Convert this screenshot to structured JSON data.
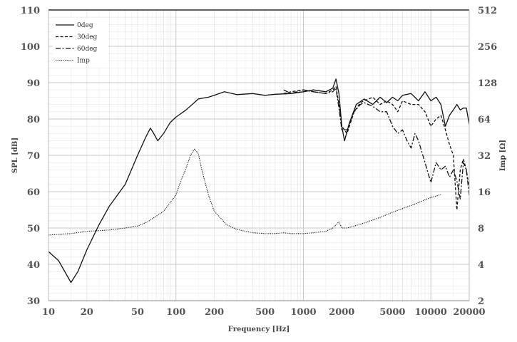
{
  "chart_data": {
    "type": "line",
    "title": "",
    "xlabel": "Frequency [Hz]",
    "ylabel": "SPL [dB]",
    "y2label": "Imp [Ω]",
    "x_scale": "log",
    "xlim": [
      10,
      20000
    ],
    "ylim": [
      30,
      110
    ],
    "y2lim": [
      2,
      512
    ],
    "y2_scale": "log2",
    "grid": true,
    "legend_position": "top-left",
    "x_ticks": [
      10,
      20,
      50,
      100,
      200,
      500,
      1000,
      2000,
      5000,
      10000,
      20000
    ],
    "x_tick_labels": [
      "10",
      "20",
      "50",
      "100",
      "200",
      "500",
      "1000",
      "2000",
      "5000",
      "10000",
      "20000"
    ],
    "y_ticks": [
      30,
      40,
      50,
      60,
      70,
      80,
      90,
      100,
      110
    ],
    "y_tick_labels": [
      "30",
      "40",
      "50",
      "60",
      "70",
      "80",
      "90",
      "100",
      "110"
    ],
    "y2_ticks": [
      2,
      4,
      8,
      16,
      32,
      64,
      128,
      256,
      512
    ],
    "y2_tick_labels": [
      "2",
      "4",
      "8",
      "16",
      "32",
      "64",
      "128",
      "256",
      "512"
    ],
    "series": [
      {
        "name": "0deg",
        "axis": "left",
        "style": "solid",
        "x": [
          10,
          12,
          15,
          17,
          20,
          25,
          30,
          40,
          50,
          58,
          63,
          67,
          72,
          80,
          90,
          100,
          120,
          150,
          180,
          200,
          240,
          300,
          400,
          500,
          600,
          800,
          1000,
          1200,
          1500,
          1700,
          1800,
          1900,
          2000,
          2100,
          2300,
          2600,
          3000,
          3500,
          4000,
          4500,
          5000,
          5500,
          6000,
          7000,
          8000,
          9000,
          10000,
          11000,
          12000,
          13000,
          14000,
          15000,
          16000,
          17000,
          18000,
          19000,
          20000
        ],
        "y": [
          43.5,
          41,
          35,
          38,
          44,
          51,
          56,
          62,
          70,
          75,
          77.5,
          76,
          74,
          76,
          79,
          80.5,
          82.5,
          85.5,
          86,
          86.5,
          87.5,
          86.7,
          87,
          86.5,
          86.8,
          87,
          87.5,
          88,
          87.5,
          88.5,
          91,
          87,
          78,
          74,
          79,
          84,
          85.5,
          84,
          86,
          84.5,
          86,
          85,
          86.5,
          87,
          85,
          87.5,
          85,
          86,
          84,
          78,
          81,
          82.5,
          84,
          82.5,
          83,
          83,
          78.5
        ]
      },
      {
        "name": "30deg",
        "axis": "left",
        "style": "dashed",
        "x": [
          700,
          800,
          1000,
          1200,
          1500,
          1700,
          1800,
          1900,
          2000,
          2200,
          2500,
          2800,
          3000,
          3500,
          4000,
          4500,
          5000,
          5500,
          6000,
          7000,
          8000,
          9000,
          10000,
          11000,
          12000,
          13000,
          14000,
          15000,
          16000,
          17000,
          18000,
          19000,
          20000
        ],
        "y": [
          87,
          87.5,
          88,
          87.5,
          87,
          88,
          89,
          84,
          78,
          76,
          82,
          84.5,
          85,
          86,
          84,
          85,
          84,
          82,
          85,
          84,
          84,
          82,
          78,
          80,
          81,
          77,
          73,
          70,
          55,
          66,
          69,
          66,
          61
        ]
      },
      {
        "name": "60deg",
        "axis": "left",
        "style": "dashdot",
        "x": [
          700,
          800,
          1000,
          1200,
          1500,
          1700,
          1800,
          1900,
          2000,
          2200,
          2500,
          2800,
          3000,
          3500,
          4000,
          4500,
          5000,
          5500,
          6000,
          6500,
          7000,
          7500,
          8000,
          9000,
          10000,
          11000,
          12000,
          13000,
          14000,
          15000,
          16000,
          17000,
          18000,
          19000,
          20000
        ],
        "y": [
          88,
          87,
          88,
          87.5,
          87,
          87.5,
          88.5,
          83,
          77,
          77,
          82,
          84,
          84.5,
          83.5,
          82,
          82,
          78,
          76,
          77,
          74,
          72,
          76,
          74,
          68,
          62.5,
          68,
          66,
          67,
          64,
          66,
          63,
          58,
          68,
          66,
          59
        ]
      },
      {
        "name": "Imp",
        "axis": "right",
        "style": "dotted",
        "x": [
          10,
          15,
          20,
          30,
          40,
          50,
          60,
          80,
          100,
          110,
          120,
          130,
          140,
          150,
          160,
          180,
          200,
          250,
          300,
          400,
          500,
          600,
          700,
          800,
          1000,
          1200,
          1500,
          1700,
          1800,
          1900,
          2000,
          2200,
          2500,
          3000,
          4000,
          5000,
          6000,
          7000,
          8000,
          9000,
          10000,
          11000,
          12000
        ],
        "y": [
          7.0,
          7.2,
          7.5,
          7.7,
          8.0,
          8.3,
          9.0,
          11.0,
          15.0,
          20.0,
          25.0,
          32.0,
          36.0,
          33.0,
          24.0,
          15.0,
          11.0,
          8.5,
          7.8,
          7.3,
          7.2,
          7.2,
          7.3,
          7.2,
          7.2,
          7.3,
          7.5,
          8.0,
          8.5,
          9.0,
          8.0,
          8.0,
          8.3,
          8.8,
          9.8,
          10.8,
          11.6,
          12.3,
          13.0,
          13.7,
          14.3,
          14.7,
          15.2
        ]
      }
    ]
  }
}
